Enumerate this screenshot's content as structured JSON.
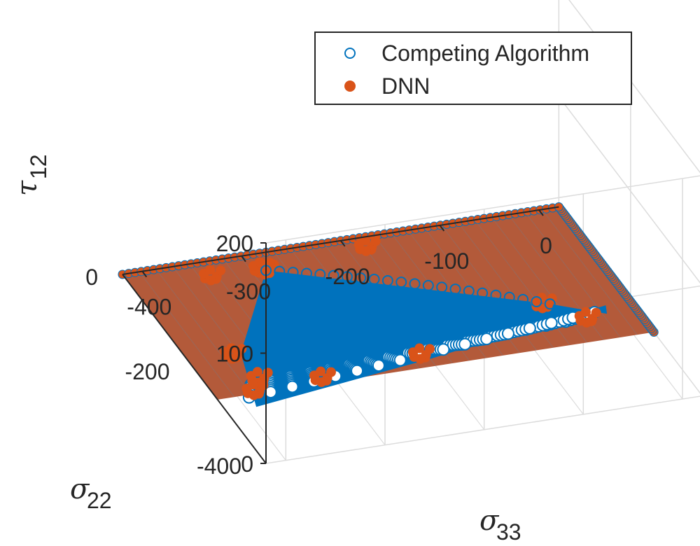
{
  "chart_data": {
    "type": "scatter",
    "projection": "3d",
    "grid": true,
    "legend_position": "top-right",
    "x_axis": {
      "symbol": "σ",
      "subscript": "33",
      "ticks": [
        {
          "value": -400,
          "label": "-400"
        },
        {
          "value": -300,
          "label": "-300"
        },
        {
          "value": -200,
          "label": "-200"
        },
        {
          "value": -100,
          "label": "-100"
        },
        {
          "value": 0,
          "label": "0"
        }
      ],
      "range": [
        -420,
        20
      ]
    },
    "y_axis": {
      "symbol": "σ",
      "subscript": "22",
      "ticks": [
        {
          "value": -400,
          "label": "-400"
        },
        {
          "value": -200,
          "label": "-200"
        },
        {
          "value": 0,
          "label": "0"
        }
      ],
      "range": [
        -400,
        0
      ]
    },
    "z_axis": {
      "symbol": "τ",
      "subscript": "12",
      "ticks": [
        {
          "value": 0,
          "label": "0"
        },
        {
          "value": 100,
          "label": "100"
        },
        {
          "value": 200,
          "label": "200"
        }
      ],
      "range": [
        0,
        200
      ]
    },
    "series": [
      {
        "name": "Competing Algorithm",
        "marker": "open-circle",
        "color": "#0072BD"
      },
      {
        "name": "DNN",
        "marker": "filled-circle",
        "color": "#D95319"
      }
    ],
    "dnn_clusters": [
      {
        "x": -420,
        "y": -400,
        "z": 175
      },
      {
        "x": -420,
        "y": -310,
        "z": 60
      },
      {
        "x": -390,
        "y": -300,
        "z": 30
      },
      {
        "x": -380,
        "y": -260,
        "z": 0
      },
      {
        "x": -310,
        "y": -255,
        "z": 0
      },
      {
        "x": -205,
        "y": -240,
        "z": 0
      },
      {
        "x": -340,
        "y": -30,
        "z": 0
      },
      {
        "x": -290,
        "y": -30,
        "z": 0
      },
      {
        "x": -180,
        "y": -20,
        "z": 0
      },
      {
        "x": -60,
        "y": -180,
        "z": 0
      },
      {
        "x": -30,
        "y": -220,
        "z": 0
      }
    ]
  }
}
